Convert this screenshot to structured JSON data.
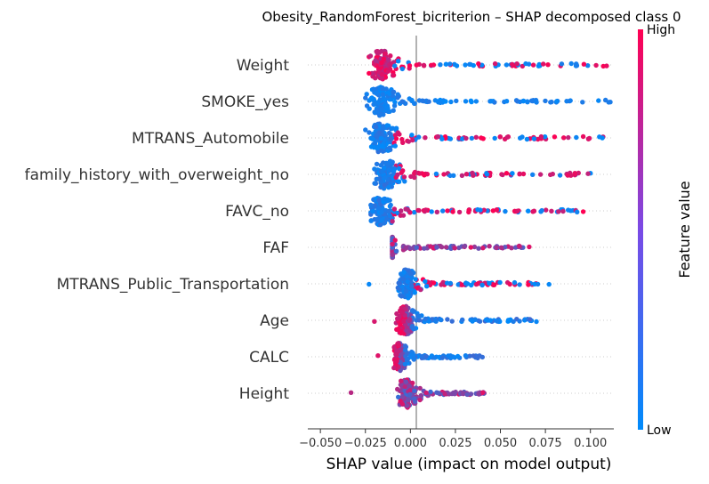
{
  "chart_data": {
    "type": "scatter",
    "title": "Obesity_RandomForest_bicriterion – SHAP decomposed class 0",
    "xlabel": "SHAP value (impact on model output)",
    "xlim": [
      -0.057,
      0.113
    ],
    "xticks": [
      -0.05,
      -0.025,
      0.0,
      0.025,
      0.05,
      0.075,
      0.1
    ],
    "xtick_labels": [
      "−0.050",
      "−0.025",
      "0.000",
      "0.025",
      "0.050",
      "0.075",
      "0.100"
    ],
    "grid": false,
    "features": [
      {
        "name": "Weight",
        "xmin": -0.023,
        "xmax": 0.109,
        "center": -0.016,
        "spread": 0.006,
        "skew": 0.05,
        "color_mode": "magenta_core"
      },
      {
        "name": "SMOKE_yes",
        "xmin": -0.025,
        "xmax": 0.111,
        "center": -0.016,
        "spread": 0.006,
        "skew": 0.05,
        "color_mode": "blue"
      },
      {
        "name": "MTRANS_Automobile",
        "xmin": -0.025,
        "xmax": 0.107,
        "center": -0.016,
        "spread": 0.006,
        "skew": 0.05,
        "color_mode": "blue_left_red_right"
      },
      {
        "name": "family_history_with_overweight_no",
        "xmin": -0.02,
        "xmax": 0.1,
        "center": -0.014,
        "spread": 0.006,
        "skew": 0.04,
        "color_mode": "blue_left_red_right"
      },
      {
        "name": "FAVC_no",
        "xmin": -0.022,
        "xmax": 0.096,
        "center": -0.016,
        "spread": 0.006,
        "skew": 0.05,
        "color_mode": "blue_left_red_right"
      },
      {
        "name": "FAF",
        "xmin": -0.01,
        "xmax": 0.066,
        "center": -0.015,
        "spread": 0.004,
        "skew": 0.03,
        "color_mode": "purple_mix"
      },
      {
        "name": "MTRANS_Public_Transportation",
        "xmin": -0.023,
        "xmax": 0.077,
        "center": -0.002,
        "spread": 0.004,
        "skew": 0.02,
        "color_mode": "blue_left_red_right"
      },
      {
        "name": "Age",
        "xmin": -0.02,
        "xmax": 0.07,
        "center": -0.003,
        "spread": 0.004,
        "skew": 0.02,
        "color_mode": "red_left_blue_right"
      },
      {
        "name": "CALC",
        "xmin": -0.018,
        "xmax": 0.04,
        "center": -0.006,
        "spread": 0.003,
        "skew": 0.015,
        "color_mode": "red_left_blue_right"
      },
      {
        "name": "Height",
        "xmin": -0.033,
        "xmax": 0.041,
        "center": -0.002,
        "spread": 0.004,
        "skew": 0.015,
        "color_mode": "purple_mix"
      }
    ],
    "colorbar": {
      "label": "Feature value",
      "high_label": "High",
      "low_label": "Low",
      "colors": [
        "#008bfb",
        "#ff0052"
      ]
    }
  }
}
